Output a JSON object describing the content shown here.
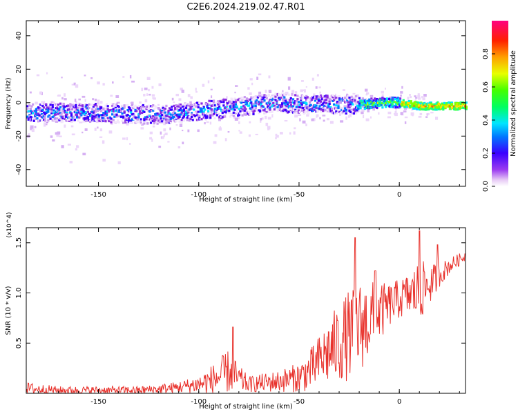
{
  "figure_title": "C2E6.2024.219.02.47.R01",
  "chart_data": [
    {
      "type": "heatmap",
      "xlabel": "Height of straight line (km)",
      "ylabel": "Frequency (Hz)",
      "xlim": [
        -186,
        33
      ],
      "ylim": [
        -50,
        49
      ],
      "xticks": [
        -150,
        -100,
        -50,
        0
      ],
      "xtick_labels": [
        "-150",
        "-100",
        "-50",
        "0"
      ],
      "yticks": [
        -40,
        -20,
        0,
        20,
        40
      ],
      "ytick_labels": [
        "-40",
        "-20",
        "0",
        "20",
        "40"
      ],
      "grid": false,
      "colorbar": {
        "label": "Normalized spectral amplitude",
        "range": [
          0,
          1
        ],
        "ticks": [
          0.0,
          0.2,
          0.4,
          0.6,
          0.8
        ],
        "tick_labels": [
          "0.0",
          "0.2",
          "0.4",
          "0.6",
          "0.8"
        ],
        "colormap": "rainbow (white-violet-blue-cyan-green-yellow-orange-red-magenta)"
      },
      "ridge": {
        "x": [
          -186,
          -170,
          -150,
          -130,
          -115,
          -100,
          -85,
          -70,
          -60,
          -50,
          -40,
          -30,
          -20,
          -10,
          0,
          10,
          20,
          33
        ],
        "frequency": [
          -6,
          -6,
          -6,
          -7,
          -7,
          -5,
          -3,
          -1,
          0,
          -1,
          -1,
          -1,
          -1,
          0,
          0,
          -2,
          -2,
          -2
        ]
      }
    },
    {
      "type": "line",
      "xlabel": "Height of straight line (km)",
      "ylabel": "SNR (10 * v/v)",
      "y_multiplier": "(x10^4)",
      "xlim": [
        -186,
        33
      ],
      "ylim": [
        0,
        1.65
      ],
      "xticks": [
        -150,
        -100,
        -50,
        0
      ],
      "xtick_labels": [
        "-150",
        "-100",
        "-50",
        "0"
      ],
      "yticks": [
        0.5,
        1.0,
        1.5
      ],
      "ytick_labels": [
        "0.5",
        "1.0",
        "1.5"
      ],
      "grid": false,
      "series_color": "#e8302a",
      "envelope": {
        "x": [
          -186,
          -170,
          -150,
          -130,
          -120,
          -110,
          -100,
          -95,
          -90,
          -85,
          -80,
          -75,
          -70,
          -60,
          -50,
          -45,
          -40,
          -35,
          -30,
          -25,
          -20,
          -15,
          -10,
          -5,
          0,
          5,
          10,
          15,
          20,
          25,
          33
        ],
        "base": [
          0.05,
          0.03,
          0.03,
          0.03,
          0.04,
          0.06,
          0.09,
          0.12,
          0.16,
          0.22,
          0.14,
          0.09,
          0.1,
          0.12,
          0.16,
          0.22,
          0.32,
          0.42,
          0.5,
          0.58,
          0.66,
          0.73,
          0.8,
          0.88,
          0.94,
          0.98,
          1.02,
          1.08,
          1.18,
          1.27,
          1.37
        ],
        "amp": [
          0.06,
          0.04,
          0.04,
          0.04,
          0.05,
          0.06,
          0.09,
          0.14,
          0.18,
          0.22,
          0.14,
          0.08,
          0.09,
          0.11,
          0.15,
          0.2,
          0.26,
          0.34,
          0.4,
          0.45,
          0.46,
          0.4,
          0.3,
          0.22,
          0.2,
          0.22,
          0.32,
          0.2,
          0.12,
          0.08,
          0.05
        ]
      },
      "peaks": [
        {
          "x": -83,
          "y": 0.66
        },
        {
          "x": -22,
          "y": 1.55
        },
        {
          "x": -12,
          "y": 1.22
        },
        {
          "x": 10,
          "y": 1.62
        },
        {
          "x": 19,
          "y": 1.48
        }
      ]
    }
  ]
}
